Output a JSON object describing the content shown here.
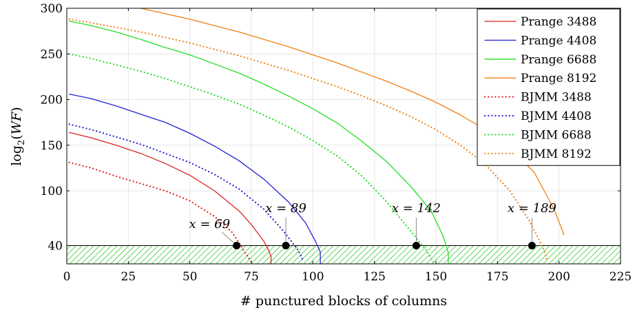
{
  "chart_data": {
    "type": "line",
    "xlabel": "# punctured blocks of columns",
    "ylabel": "log2(WF)",
    "xlim": [
      0,
      225
    ],
    "ylim": [
      20,
      300
    ],
    "xticks": [
      0,
      25,
      50,
      75,
      100,
      125,
      150,
      175,
      200,
      225
    ],
    "yticks": [
      40,
      100,
      150,
      200,
      250,
      300
    ],
    "grid": true,
    "legend_position": "top-right",
    "threshold": {
      "y": 40,
      "fill": "hatched",
      "color": "#33cc33"
    },
    "series": [
      {
        "name": "Prange 3488",
        "color": "#e02020",
        "style": "solid",
        "x": [
          1,
          10,
          20,
          30,
          40,
          50,
          60,
          70,
          75,
          80,
          82,
          83,
          83
        ],
        "y": [
          164,
          158,
          150,
          141,
          130,
          117,
          100,
          78,
          63,
          45,
          35,
          28,
          20
        ]
      },
      {
        "name": "Prange 4408",
        "color": "#2020d0",
        "style": "solid",
        "x": [
          1,
          10,
          20,
          30,
          40,
          50,
          60,
          70,
          80,
          90,
          97,
          101,
          103,
          103
        ],
        "y": [
          206,
          201,
          193,
          184,
          175,
          163,
          149,
          133,
          113,
          88,
          65,
          45,
          33,
          20
        ]
      },
      {
        "name": "Prange 6688",
        "color": "#22dd22",
        "style": "solid",
        "x": [
          1,
          10,
          20,
          30,
          40,
          50,
          60,
          70,
          80,
          90,
          100,
          110,
          120,
          130,
          140,
          148,
          153,
          155,
          155
        ],
        "y": [
          286,
          281,
          274,
          266,
          257,
          249,
          239,
          229,
          217,
          204,
          190,
          174,
          154,
          132,
          104,
          78,
          50,
          32,
          20
        ]
      },
      {
        "name": "Prange 8192",
        "color": "#f07f10",
        "style": "solid",
        "x": [
          30,
          40,
          50,
          60,
          70,
          80,
          90,
          100,
          110,
          120,
          130,
          140,
          150,
          160,
          170,
          180,
          190,
          198,
          202
        ],
        "y": [
          300,
          294,
          288,
          281,
          274,
          266,
          258,
          249,
          240,
          230,
          220,
          209,
          197,
          183,
          167,
          147,
          120,
          80,
          52
        ]
      },
      {
        "name": "BJMM 3488",
        "color": "#e02020",
        "style": "dotted",
        "x": [
          1,
          10,
          20,
          30,
          40,
          50,
          60,
          67,
          70,
          72,
          75
        ],
        "y": [
          131,
          125,
          116,
          108,
          100,
          89,
          72,
          55,
          43,
          34,
          22
        ]
      },
      {
        "name": "BJMM 4408",
        "color": "#2020d0",
        "style": "dotted",
        "x": [
          1,
          10,
          20,
          30,
          40,
          50,
          60,
          70,
          80,
          88,
          94,
          96
        ],
        "y": [
          173,
          167,
          159,
          151,
          141,
          131,
          118,
          102,
          80,
          56,
          35,
          24
        ]
      },
      {
        "name": "BJMM 6688",
        "color": "#22dd22",
        "style": "dotted",
        "x": [
          1,
          10,
          20,
          30,
          40,
          50,
          60,
          70,
          80,
          90,
          100,
          110,
          120,
          130,
          140,
          146,
          149
        ],
        "y": [
          250,
          245,
          238,
          231,
          223,
          214,
          205,
          195,
          183,
          170,
          155,
          138,
          116,
          88,
          55,
          35,
          22
        ]
      },
      {
        "name": "BJMM 8192",
        "color": "#f07f10",
        "style": "dotted",
        "x": [
          1,
          10,
          20,
          30,
          40,
          50,
          60,
          70,
          80,
          90,
          100,
          110,
          120,
          130,
          140,
          150,
          160,
          170,
          180,
          188,
          194,
          195
        ],
        "y": [
          288,
          284,
          279,
          274,
          268,
          262,
          255,
          248,
          240,
          232,
          223,
          214,
          204,
          193,
          181,
          167,
          150,
          129,
          100,
          67,
          35,
          25
        ]
      }
    ],
    "points": [
      {
        "x": 69,
        "y": 40
      },
      {
        "x": 89,
        "y": 40
      },
      {
        "x": 142,
        "y": 40
      },
      {
        "x": 189,
        "y": 40
      }
    ],
    "annotations": [
      {
        "text": "x = 69",
        "x": 69,
        "y": 40
      },
      {
        "text": "x = 89",
        "x": 89,
        "y": 40
      },
      {
        "text": "x = 142",
        "x": 142,
        "y": 40
      },
      {
        "text": "x = 189",
        "x": 189,
        "y": 40
      }
    ]
  }
}
